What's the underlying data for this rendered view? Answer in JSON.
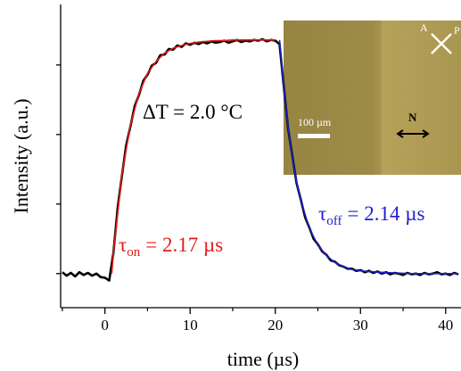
{
  "chart_data": {
    "type": "line",
    "xlabel": "time (µs)",
    "ylabel": "Intensity (a.u.)",
    "xlim": [
      -5.2,
      41.8
    ],
    "xticks": [
      0,
      10,
      20,
      30,
      40
    ],
    "xminorticks": [
      -5,
      5,
      15,
      25,
      35
    ],
    "ylim": [
      -0.49,
      3.87
    ],
    "yticks": [
      0,
      1,
      2,
      3
    ],
    "series": [
      {
        "color": "#000000",
        "width": 2.6,
        "x": [
          -5,
          -4.5,
          -4,
          -3.5,
          -3,
          -2.5,
          -2,
          -1.5,
          -1,
          -0.5,
          0,
          0.5,
          1,
          1.5,
          2,
          2.5,
          3,
          3.5,
          4,
          4.5,
          5,
          5.5,
          6,
          6.5,
          7,
          7.5,
          8,
          8.5,
          9,
          9.5,
          10,
          10.5,
          11,
          11.5,
          12,
          12.5,
          13,
          13.5,
          14,
          14.5,
          15,
          15.5,
          16,
          16.5,
          17,
          17.5,
          18,
          18.5,
          19,
          19.5,
          20,
          20.5,
          21,
          21.5,
          22,
          22.5,
          23,
          23.5,
          24,
          24.5,
          25,
          25.5,
          26,
          26.5,
          27,
          27.5,
          28,
          28.5,
          29,
          29.5,
          30,
          30.5,
          31,
          31.5,
          32,
          32.5,
          33,
          33.5,
          34,
          34.5,
          35,
          35.5,
          36,
          36.5,
          37,
          37.5,
          38,
          38.5,
          39,
          39.5,
          40,
          40.5,
          41,
          41.5
        ],
        "values": [
          0.02,
          -0.03,
          0.01,
          -0.04,
          0.02,
          -0.02,
          0.01,
          -0.03,
          0.0,
          -0.05,
          -0.06,
          -0.1,
          0.3,
          0.95,
          1.41,
          1.85,
          2.12,
          2.41,
          2.57,
          2.77,
          2.86,
          2.99,
          3.03,
          3.14,
          3.15,
          3.23,
          3.22,
          3.28,
          3.26,
          3.31,
          3.29,
          3.32,
          3.3,
          3.33,
          3.31,
          3.34,
          3.32,
          3.33,
          3.35,
          3.32,
          3.34,
          3.36,
          3.33,
          3.35,
          3.34,
          3.36,
          3.35,
          3.37,
          3.34,
          3.36,
          3.35,
          3.3,
          2.68,
          2.09,
          1.69,
          1.3,
          1.06,
          0.81,
          0.66,
          0.5,
          0.42,
          0.32,
          0.27,
          0.19,
          0.17,
          0.12,
          0.1,
          0.07,
          0.07,
          0.04,
          0.05,
          0.02,
          0.04,
          0.01,
          0.03,
          0.0,
          0.02,
          -0.01,
          0.01,
          0.0,
          -0.02,
          0.01,
          -0.01,
          0.0,
          -0.02,
          0.01,
          -0.01,
          0.0,
          0.02,
          -0.01,
          0.0,
          -0.02,
          0.01,
          -0.01
        ]
      },
      {
        "color": "#e41a1c",
        "width": 1.6,
        "x": [
          0.8,
          1,
          2,
          3,
          4,
          5,
          6,
          7,
          8,
          9,
          10,
          11,
          12,
          13,
          14,
          15,
          16,
          17,
          18,
          19,
          20
        ],
        "values": [
          0,
          0.3,
          1.43,
          2.14,
          2.59,
          2.88,
          3.05,
          3.17,
          3.24,
          3.28,
          3.31,
          3.33,
          3.34,
          3.35,
          3.35,
          3.36,
          3.36,
          3.36,
          3.36,
          3.36,
          3.36
        ]
      },
      {
        "color": "#1f1fd0",
        "width": 1.6,
        "x": [
          20.5,
          21,
          21.5,
          22,
          22.5,
          23,
          24,
          25,
          26,
          27,
          28,
          29,
          30,
          32,
          34,
          36,
          38,
          40,
          41.5
        ],
        "values": [
          3.36,
          2.66,
          2.11,
          1.67,
          1.32,
          1.05,
          0.65,
          0.41,
          0.26,
          0.16,
          0.1,
          0.06,
          0.04,
          0.02,
          0.01,
          0,
          0,
          0,
          0
        ]
      }
    ],
    "annotations": [
      {
        "text": "ΔT = 2.0 °C",
        "color": "#000000"
      },
      {
        "symbol": "τ",
        "subscript": "on",
        "text": "= 2.17 µs",
        "color": "#e41a1c"
      },
      {
        "symbol": "τ",
        "subscript": "off",
        "text": "= 2.14 µs",
        "color": "#1f1fd0"
      }
    ],
    "inset": {
      "labels": [
        "A",
        "P",
        "100 µm",
        "N"
      ]
    }
  }
}
